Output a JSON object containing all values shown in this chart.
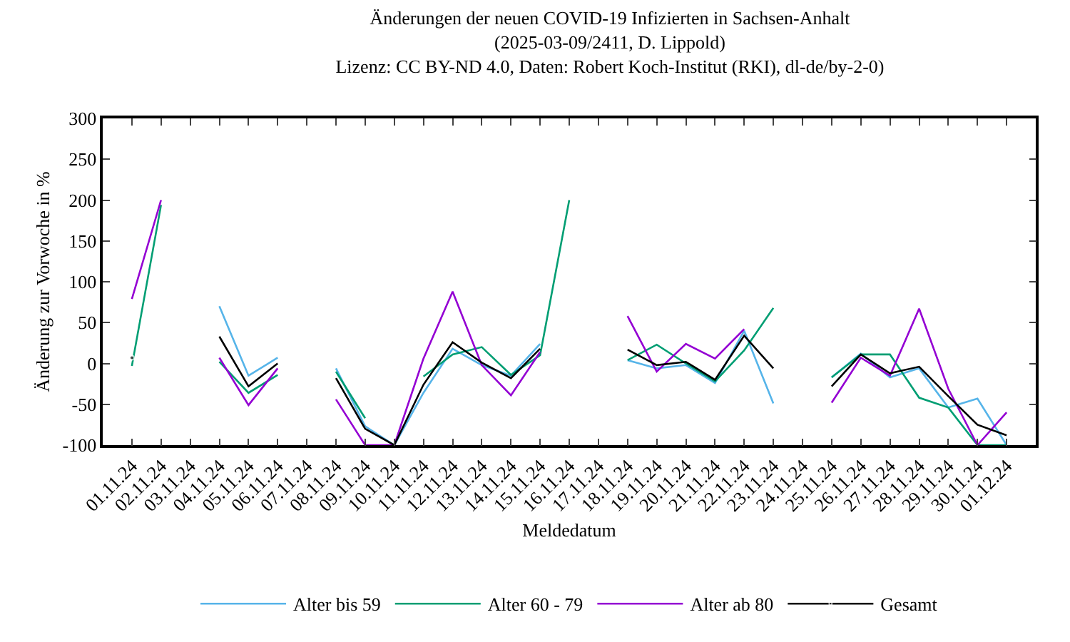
{
  "chart_data": {
    "type": "line",
    "title": "Änderungen der neuen COVID-19 Infizierten in Sachsen-Anhalt\n(2025-03-09/2411, D. Lippold)\nLizenz: CC BY-ND 4.0, Daten: Robert Koch-Institut (RKI), dl-de/by-2-0)",
    "xlabel": "Meldedatum",
    "ylabel": "Änderung zur Vorwoche in %",
    "categories": [
      "01.11.24",
      "02.11.24",
      "03.11.24",
      "04.11.24",
      "05.11.24",
      "06.11.24",
      "07.11.24",
      "08.11.24",
      "09.11.24",
      "10.11.24",
      "11.11.24",
      "12.11.24",
      "13.11.24",
      "14.11.24",
      "15.11.24",
      "16.11.24",
      "17.11.24",
      "18.11.24",
      "19.11.24",
      "20.11.24",
      "21.11.24",
      "22.11.24",
      "23.11.24",
      "24.11.24",
      "25.11.24",
      "26.11.24",
      "27.11.24",
      "28.11.24",
      "29.11.24",
      "30.11.24",
      "01.12.24"
    ],
    "series": [
      {
        "name": "Alter bis 59",
        "color": "#56b4e9",
        "values": [
          null,
          null,
          null,
          70,
          -15,
          7,
          null,
          -6,
          -77,
          -100,
          -36,
          18,
          -2,
          -15,
          24,
          null,
          null,
          4,
          -6,
          -2,
          -24,
          40,
          -49,
          null,
          -17,
          12,
          -17,
          -6,
          -54,
          -43,
          -100
        ]
      },
      {
        "name": "Alter 60 - 79",
        "color": "#009e73",
        "values": [
          -3,
          194,
          null,
          2,
          -36,
          -14,
          null,
          -10,
          -67,
          null,
          -16,
          11,
          20,
          -14,
          10,
          200,
          null,
          4,
          23,
          0,
          -22,
          16,
          68,
          null,
          -17,
          11,
          11,
          -42,
          -54,
          -100,
          -100
        ]
      },
      {
        "name": "Alter ab 80",
        "color": "#9400d3",
        "values": [
          79,
          200,
          null,
          7,
          -51,
          -6,
          null,
          -44,
          -100,
          -100,
          6,
          88,
          -2,
          -39,
          14,
          null,
          null,
          58,
          -10,
          24,
          6,
          42,
          null,
          null,
          -48,
          7,
          -15,
          67,
          -31,
          -100,
          -60
        ]
      },
      {
        "name": "Gesamt",
        "color": "#000000",
        "values": [
          7,
          null,
          null,
          33,
          -28,
          0,
          null,
          -18,
          -80,
          -100,
          -26,
          26,
          1,
          -18,
          18,
          null,
          null,
          17,
          -2,
          2,
          -20,
          34,
          -6,
          null,
          -28,
          11,
          -12,
          -4,
          -40,
          -75,
          -88
        ]
      }
    ],
    "ylim": [
      -100,
      300
    ],
    "yticks": [
      -100,
      -50,
      0,
      50,
      100,
      150,
      200,
      250,
      300
    ],
    "grid": false,
    "legend": "bottom",
    "line_style": "solid",
    "marker": "none"
  }
}
